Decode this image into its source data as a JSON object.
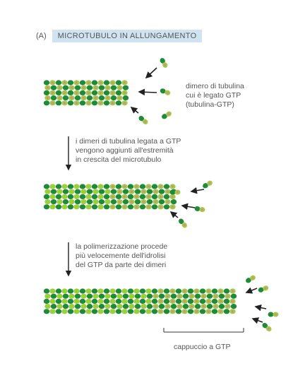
{
  "panel": {
    "letter": "(A)",
    "title": "MICROTUBULO IN ALLUNGAMENTO"
  },
  "labels": {
    "dimer": [
      "dimero di tubulina",
      "cui è legato GTP",
      "(tubulina-GTP)"
    ],
    "step1": [
      "i dimeri di tubulina legata a GTP",
      "vengono aggiunti all'estremità",
      "in crescita del microtubulo"
    ],
    "step2": [
      "la polimerizzazione procede",
      "più velocemente dell'idrolisi",
      "del GTP da parte dei dimeri"
    ],
    "cap": "cappuccio a GTP"
  },
  "colors": {
    "dark_green": "#1f8a3a",
    "light_green": "#9ccf3c",
    "gtp_pink": "#d98a9a",
    "title_band": "#cfe3f1"
  }
}
